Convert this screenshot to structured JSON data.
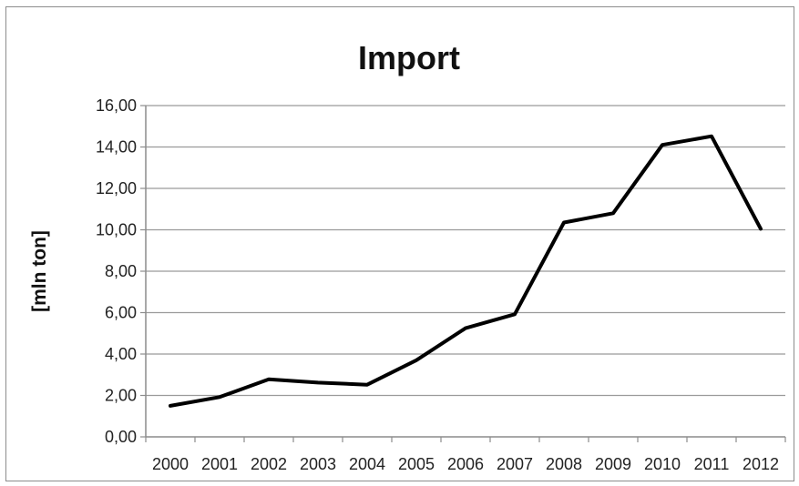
{
  "chart_data": {
    "type": "line",
    "title": "Import",
    "xlabel": "",
    "ylabel": "[mln ton]",
    "categories": [
      "2000",
      "2001",
      "2002",
      "2003",
      "2004",
      "2005",
      "2006",
      "2007",
      "2008",
      "2009",
      "2010",
      "2011",
      "2012"
    ],
    "series": [
      {
        "values": [
          1.5,
          1.92,
          2.78,
          2.62,
          2.52,
          3.7,
          5.25,
          5.92,
          10.35,
          10.8,
          14.1,
          14.52,
          10.05
        ]
      }
    ],
    "y_ticks": [
      "0,00",
      "2,00",
      "4,00",
      "6,00",
      "8,00",
      "10,00",
      "12,00",
      "14,00",
      "16,00"
    ],
    "ylim": [
      0,
      16
    ],
    "grid": true,
    "legend": "none",
    "colors": {
      "line": "#000000",
      "grid": "#9a9a9a",
      "axis": "#8c8c8c"
    }
  }
}
